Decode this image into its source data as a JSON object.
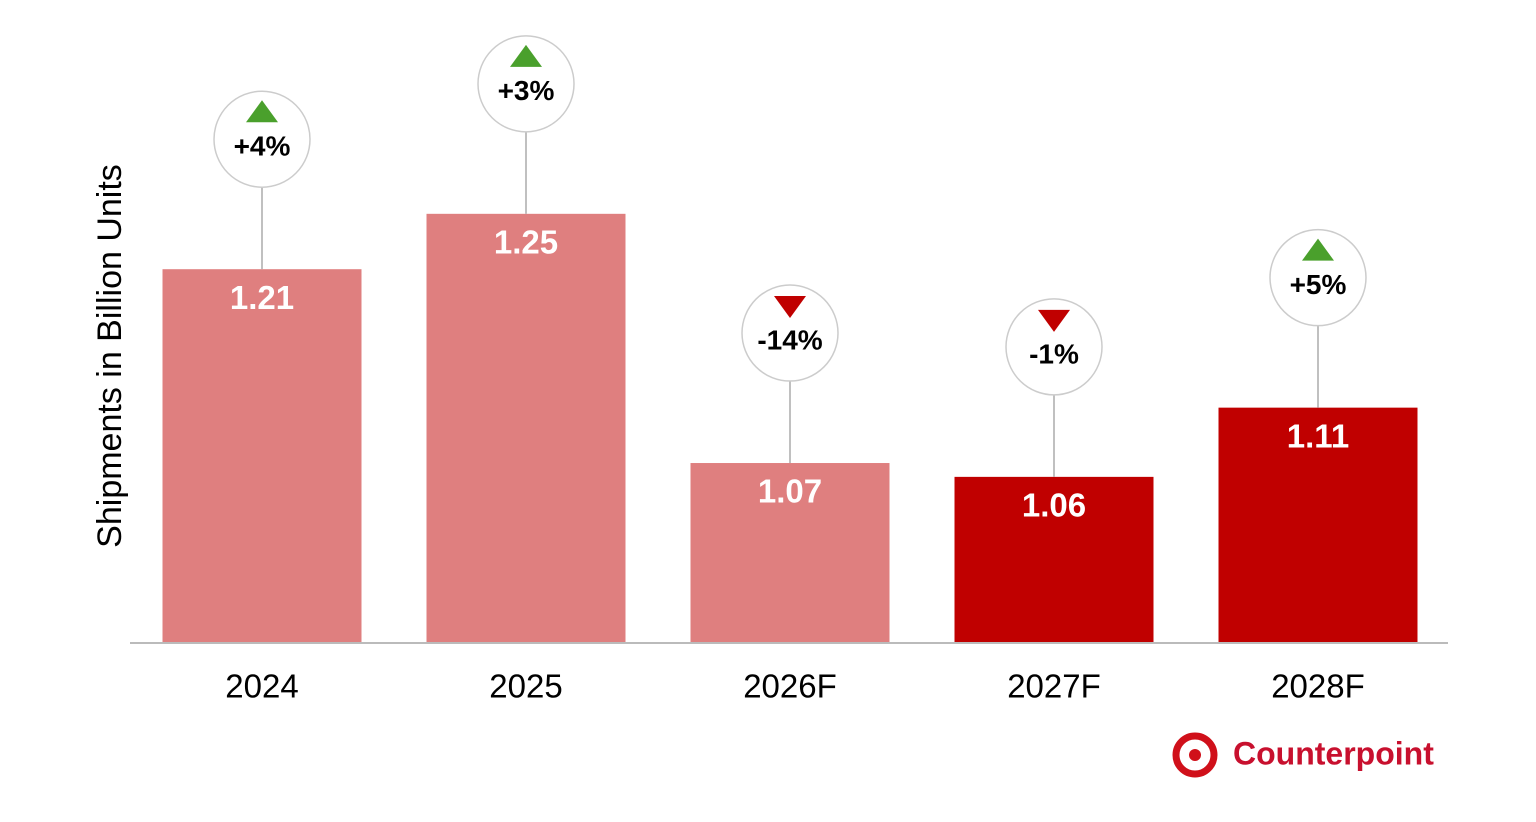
{
  "chart_data": {
    "type": "bar",
    "y_label": "Shipments in Billion Units",
    "categories": [
      "2024",
      "2025",
      "2026F",
      "2027F",
      "2028F"
    ],
    "values": [
      1.21,
      1.25,
      1.07,
      1.06,
      1.11
    ],
    "colors": [
      "#df7f7f",
      "#df7f7f",
      "#df7f7f",
      "#c00000",
      "#c00000"
    ],
    "annotations": [
      "+4%",
      "+3%",
      "-14%",
      "-1%",
      "+5%"
    ],
    "ylim": [
      0.94,
      1.39
    ],
    "source_logo": "Counterpoint"
  }
}
